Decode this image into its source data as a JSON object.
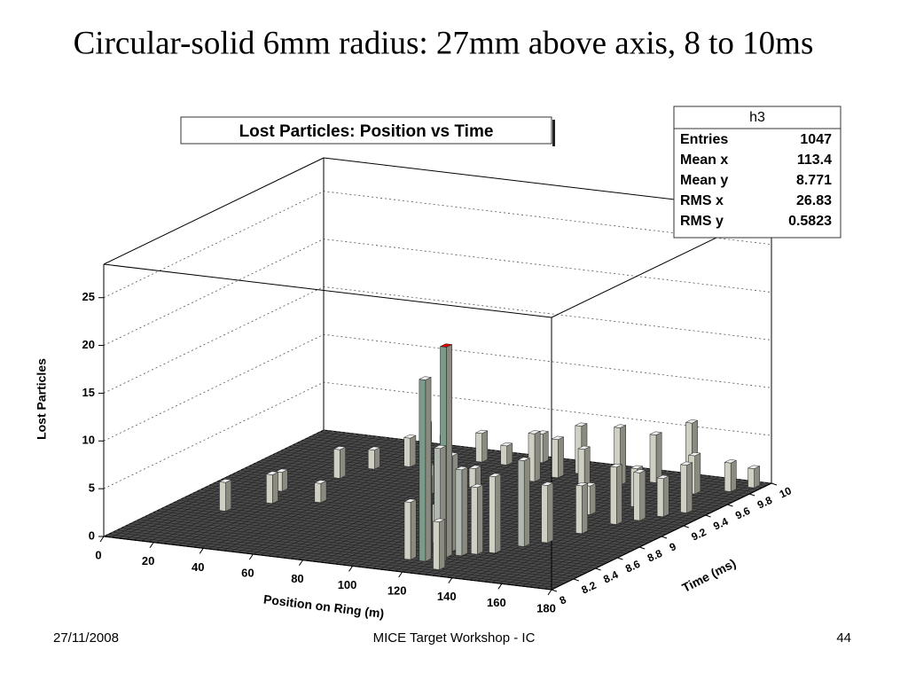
{
  "slide_title": "Circular-solid 6mm radius: 27mm above axis, 8 to 10ms",
  "chart_data": {
    "type": "lego3d",
    "title": "Lost Particles: Position vs Time",
    "x_label": "Position on Ring (m)",
    "y_label": "Time (ms)",
    "z_label": "Lost Particles",
    "xlim": [
      0,
      180
    ],
    "xticks": [
      0,
      20,
      40,
      60,
      80,
      100,
      120,
      140,
      160,
      180
    ],
    "ylim": [
      8,
      10
    ],
    "yticks": [
      8,
      8.2,
      8.4,
      8.6,
      8.8,
      9,
      9.2,
      9.4,
      9.6,
      9.8,
      10
    ],
    "zlim": [
      0,
      28.5
    ],
    "zticks": [
      0,
      5,
      10,
      15,
      20,
      25
    ],
    "grid": true,
    "x": [
      118,
      122,
      116,
      124,
      120,
      126,
      114,
      112,
      130,
      135,
      140,
      128,
      110,
      145,
      150,
      155,
      160,
      165,
      170,
      100,
      105,
      60,
      50,
      40,
      35,
      25,
      30,
      20,
      45,
      70,
      80,
      90,
      130,
      140,
      150,
      120,
      110,
      160,
      170,
      175,
      85,
      140,
      150,
      95,
      75
    ],
    "y": [
      8.2,
      8.3,
      8.25,
      8.2,
      8.4,
      8.35,
      8.3,
      8.2,
      8.4,
      8.45,
      8.6,
      8.1,
      8.5,
      8.7,
      8.9,
      9.1,
      9.2,
      9.3,
      9.4,
      9.6,
      9.7,
      9.7,
      9.6,
      9.5,
      9.3,
      9.0,
      8.8,
      8.6,
      8.9,
      9.8,
      9.8,
      9.9,
      9.7,
      9.8,
      9.9,
      9.6,
      9.8,
      9.7,
      9.8,
      9.9,
      9.4,
      9.2,
      9.4,
      9.0,
      9.2
    ],
    "values": [
      19,
      22,
      14,
      12,
      10,
      9,
      8,
      6,
      7,
      8,
      9,
      5,
      4,
      6,
      5,
      6,
      5,
      4,
      5,
      5,
      4,
      3,
      3,
      2,
      3,
      2,
      3,
      3,
      2,
      3,
      2,
      3,
      6,
      5,
      6,
      4,
      5,
      4,
      3,
      2,
      2,
      3,
      4,
      2,
      3
    ],
    "stats": {
      "title": "h3",
      "rows": [
        [
          "Entries",
          1047
        ],
        [
          "Mean x",
          113.4
        ],
        [
          "Mean y",
          8.771
        ],
        [
          "RMS x",
          26.83
        ],
        [
          "RMS y",
          0.5823
        ]
      ]
    }
  },
  "footer": {
    "date": "27/11/2008",
    "center": "MICE Target Workshop - IC",
    "page": 44
  }
}
